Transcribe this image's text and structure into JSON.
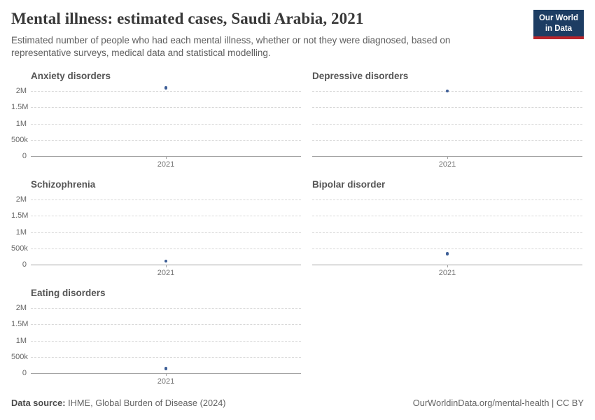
{
  "header": {
    "title": "Mental illness: estimated cases, Saudi Arabia, 2021",
    "subtitle": "Estimated number of people who had each mental illness, whether or not they were diagnosed, based on representative surveys, medical data and statistical modelling.",
    "logo": {
      "line1": "Our World",
      "line2": "in Data",
      "bg_color": "#1d3d63",
      "accent_color": "#b9252b"
    }
  },
  "chart_data": [
    {
      "type": "scatter",
      "title": "Anxiety disorders",
      "x": [
        "2021"
      ],
      "values": [
        2100000
      ],
      "y_tick_values": [
        0,
        500000,
        1000000,
        1500000,
        2000000
      ],
      "y_tick_labels": [
        "0",
        "500k",
        "1M",
        "1.5M",
        "2M"
      ],
      "ylim": [
        0,
        2300000
      ],
      "grid": true,
      "point_color": "#3d5e97"
    },
    {
      "type": "scatter",
      "title": "Depressive disorders",
      "x": [
        "2021"
      ],
      "values": [
        2000000
      ],
      "y_tick_values": [
        0,
        500000,
        1000000,
        1500000,
        2000000
      ],
      "y_tick_labels": [
        "0",
        "500k",
        "1M",
        "1.5M",
        "2M"
      ],
      "ylim": [
        0,
        2300000
      ],
      "grid": true,
      "point_color": "#3d5e97"
    },
    {
      "type": "scatter",
      "title": "Schizophrenia",
      "x": [
        "2021"
      ],
      "values": [
        110000
      ],
      "y_tick_values": [
        0,
        500000,
        1000000,
        1500000,
        2000000
      ],
      "y_tick_labels": [
        "0",
        "500k",
        "1M",
        "1.5M",
        "2M"
      ],
      "ylim": [
        0,
        2300000
      ],
      "grid": true,
      "point_color": "#3d5e97"
    },
    {
      "type": "scatter",
      "title": "Bipolar disorder",
      "x": [
        "2021"
      ],
      "values": [
        330000
      ],
      "y_tick_values": [
        0,
        500000,
        1000000,
        1500000,
        2000000
      ],
      "y_tick_labels": [
        "0",
        "500k",
        "1M",
        "1.5M",
        "2M"
      ],
      "ylim": [
        0,
        2300000
      ],
      "grid": true,
      "point_color": "#3d5e97"
    },
    {
      "type": "scatter",
      "title": "Eating disorders",
      "x": [
        "2021"
      ],
      "values": [
        140000
      ],
      "y_tick_values": [
        0,
        500000,
        1000000,
        1500000,
        2000000
      ],
      "y_tick_labels": [
        "0",
        "500k",
        "1M",
        "1.5M",
        "2M"
      ],
      "ylim": [
        0,
        2300000
      ],
      "grid": true,
      "point_color": "#3d5e97"
    }
  ],
  "footer": {
    "data_source_label": "Data source:",
    "data_source_value": "IHME, Global Burden of Disease (2024)",
    "right_note": "OurWorldinData.org/mental-health | CC BY"
  }
}
